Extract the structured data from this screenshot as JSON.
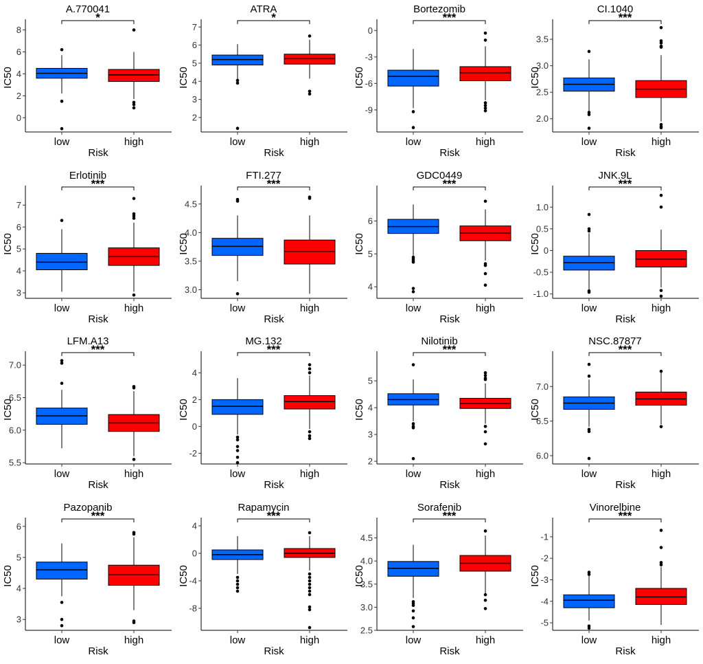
{
  "colors": {
    "low": "#0066FF",
    "high": "#FF0000"
  },
  "chart_data": [
    {
      "type": "box",
      "title": "A.770041",
      "xlabel": "Risk",
      "ylabel": "IC50",
      "categories": [
        "low",
        "high"
      ],
      "ylim": [
        -1.3,
        8.6
      ],
      "yticks": [
        0,
        2,
        4,
        6,
        8
      ],
      "yticklabels": [
        "0",
        "2",
        "4",
        "6",
        "8"
      ],
      "significance": "*",
      "series": [
        {
          "name": "low",
          "q1": 3.6,
          "median": 4.05,
          "q3": 4.5,
          "whisker_low": 2.2,
          "whisker_high": 5.7,
          "outliers": [
            6.2,
            1.5,
            -1.0
          ]
        },
        {
          "name": "high",
          "q1": 3.3,
          "median": 3.9,
          "q3": 4.4,
          "whisker_low": 1.7,
          "whisker_high": 6.0,
          "outliers": [
            8.0,
            1.4,
            1.2,
            0.9
          ]
        }
      ]
    },
    {
      "type": "box",
      "title": "ATRA",
      "xlabel": "Risk",
      "ylabel": "IC50",
      "categories": [
        "low",
        "high"
      ],
      "ylim": [
        1.2,
        7.2
      ],
      "yticks": [
        2,
        3,
        4,
        5,
        6,
        7
      ],
      "yticklabels": [
        "2",
        "3",
        "4",
        "5",
        "6",
        "7"
      ],
      "significance": "*",
      "series": [
        {
          "name": "low",
          "q1": 4.9,
          "median": 5.2,
          "q3": 5.45,
          "whisker_low": 4.1,
          "whisker_high": 6.05,
          "outliers": [
            4.05,
            3.9,
            1.4
          ]
        },
        {
          "name": "high",
          "q1": 4.95,
          "median": 5.25,
          "q3": 5.5,
          "whisker_low": 4.15,
          "whisker_high": 6.3,
          "outliers": [
            6.5,
            3.45,
            3.3
          ]
        }
      ]
    },
    {
      "type": "box",
      "title": "Bortezomib",
      "xlabel": "Risk",
      "ylabel": "IC50",
      "categories": [
        "low",
        "high"
      ],
      "ylim": [
        -11.5,
        0.8
      ],
      "yticks": [
        0,
        -3,
        -6,
        -9
      ],
      "yticklabels": [
        "0",
        "-3",
        "-6",
        "-9"
      ],
      "significance": "***",
      "series": [
        {
          "name": "low",
          "q1": -6.3,
          "median": -5.2,
          "q3": -4.5,
          "whisker_low": -8.8,
          "whisker_high": -2.1,
          "outliers": [
            -9.2,
            -11.0
          ]
        },
        {
          "name": "high",
          "q1": -5.7,
          "median": -4.8,
          "q3": -4.1,
          "whisker_low": -7.9,
          "whisker_high": -1.8,
          "outliers": [
            -0.3,
            -1.1,
            -8.2,
            -8.5,
            -8.8,
            -9.1
          ]
        }
      ]
    },
    {
      "type": "box",
      "title": "CI.1040",
      "xlabel": "Risk",
      "ylabel": "IC50",
      "categories": [
        "low",
        "high"
      ],
      "ylim": [
        1.75,
        3.8
      ],
      "yticks": [
        2.0,
        2.5,
        3.0,
        3.5
      ],
      "yticklabels": [
        "2.0",
        "2.5",
        "3.0",
        "3.5"
      ],
      "significance": "***",
      "series": [
        {
          "name": "low",
          "q1": 2.52,
          "median": 2.65,
          "q3": 2.77,
          "whisker_low": 2.15,
          "whisker_high": 3.12,
          "outliers": [
            3.27,
            2.12,
            2.08,
            1.82
          ]
        },
        {
          "name": "high",
          "q1": 2.4,
          "median": 2.56,
          "q3": 2.72,
          "whisker_low": 1.95,
          "whisker_high": 3.2,
          "outliers": [
            3.72,
            3.47,
            3.43,
            3.37,
            3.35,
            1.89,
            1.85,
            1.83
          ]
        }
      ]
    },
    {
      "type": "box",
      "title": "Erlotinib",
      "xlabel": "Risk",
      "ylabel": "IC50",
      "categories": [
        "low",
        "high"
      ],
      "ylim": [
        2.75,
        7.7
      ],
      "yticks": [
        3,
        4,
        5,
        6,
        7
      ],
      "yticklabels": [
        "3",
        "4",
        "5",
        "6",
        "7"
      ],
      "significance": "***",
      "series": [
        {
          "name": "low",
          "q1": 4.05,
          "median": 4.4,
          "q3": 4.8,
          "whisker_low": 3.05,
          "whisker_high": 5.9,
          "outliers": [
            6.3
          ]
        },
        {
          "name": "high",
          "q1": 4.25,
          "median": 4.65,
          "q3": 5.05,
          "whisker_low": 3.05,
          "whisker_high": 6.2,
          "outliers": [
            7.3,
            6.6,
            6.5,
            6.4,
            2.9
          ]
        }
      ]
    },
    {
      "type": "box",
      "title": "FTI.277",
      "xlabel": "Risk",
      "ylabel": "IC50",
      "categories": [
        "low",
        "high"
      ],
      "ylim": [
        2.85,
        4.75
      ],
      "yticks": [
        3.0,
        3.5,
        4.0,
        4.5
      ],
      "yticklabels": [
        "3.0",
        "3.5",
        "4.0",
        "4.5"
      ],
      "significance": "***",
      "series": [
        {
          "name": "low",
          "q1": 3.6,
          "median": 3.76,
          "q3": 3.9,
          "whisker_low": 3.15,
          "whisker_high": 4.3,
          "outliers": [
            4.58,
            4.55,
            2.93
          ]
        },
        {
          "name": "high",
          "q1": 3.45,
          "median": 3.67,
          "q3": 3.87,
          "whisker_low": 2.93,
          "whisker_high": 4.3,
          "outliers": [
            4.62,
            4.6
          ]
        }
      ]
    },
    {
      "type": "box",
      "title": "GDC0449",
      "xlabel": "Risk",
      "ylabel": "IC50",
      "categories": [
        "low",
        "high"
      ],
      "ylim": [
        3.65,
        6.95
      ],
      "yticks": [
        4,
        5,
        6
      ],
      "yticklabels": [
        "4",
        "5",
        "6"
      ],
      "significance": "***",
      "series": [
        {
          "name": "low",
          "q1": 5.62,
          "median": 5.83,
          "q3": 6.05,
          "whisker_low": 4.95,
          "whisker_high": 6.5,
          "outliers": [
            4.9,
            4.85,
            4.8,
            4.75,
            3.95,
            3.85
          ]
        },
        {
          "name": "high",
          "q1": 5.4,
          "median": 5.63,
          "q3": 5.85,
          "whisker_low": 4.8,
          "whisker_high": 6.35,
          "outliers": [
            6.6,
            4.7,
            4.65,
            4.4,
            4.05
          ]
        }
      ]
    },
    {
      "type": "box",
      "title": "JNK.9L",
      "xlabel": "Risk",
      "ylabel": "IC50",
      "categories": [
        "low",
        "high"
      ],
      "ylim": [
        -1.1,
        1.4
      ],
      "yticks": [
        1.0,
        0.5,
        0,
        -0.5,
        -1.0
      ],
      "yticklabels": [
        "1.0",
        "0.5",
        "0",
        "-0.5",
        "-1.0"
      ],
      "significance": "***",
      "series": [
        {
          "name": "low",
          "q1": -0.45,
          "median": -0.28,
          "q3": -0.13,
          "whisker_low": -0.9,
          "whisker_high": 0.4,
          "outliers": [
            0.83,
            0.5,
            0.45,
            -0.93,
            -0.96
          ]
        },
        {
          "name": "high",
          "q1": -0.38,
          "median": -0.2,
          "q3": 0.0,
          "whisker_low": -0.85,
          "whisker_high": 0.48,
          "outliers": [
            1.27,
            1.0,
            -0.92,
            -1.05
          ]
        }
      ]
    },
    {
      "type": "box",
      "title": "LFM.A13",
      "xlabel": "Risk",
      "ylabel": "IC50",
      "categories": [
        "low",
        "high"
      ],
      "ylim": [
        5.48,
        7.15
      ],
      "yticks": [
        5.5,
        6.0,
        6.5,
        7.0
      ],
      "yticklabels": [
        "5.5",
        "6.0",
        "6.5",
        "7.0"
      ],
      "significance": "***",
      "series": [
        {
          "name": "low",
          "q1": 6.09,
          "median": 6.22,
          "q3": 6.34,
          "whisker_low": 5.72,
          "whisker_high": 6.62,
          "outliers": [
            7.07,
            7.03,
            6.72
          ]
        },
        {
          "name": "high",
          "q1": 5.98,
          "median": 6.11,
          "q3": 6.24,
          "whisker_low": 5.6,
          "whisker_high": 6.6,
          "outliers": [
            6.67,
            6.65,
            5.55
          ]
        }
      ]
    },
    {
      "type": "box",
      "title": "MG.132",
      "xlabel": "Risk",
      "ylabel": "IC50",
      "categories": [
        "low",
        "high"
      ],
      "ylim": [
        -2.8,
        5.3
      ],
      "yticks": [
        4,
        2,
        0,
        -2
      ],
      "yticklabels": [
        "4",
        "2",
        "0",
        "-2"
      ],
      "significance": "***",
      "series": [
        {
          "name": "low",
          "q1": 0.9,
          "median": 1.5,
          "q3": 2.0,
          "whisker_low": -0.6,
          "whisker_high": 3.6,
          "outliers": [
            -0.8,
            -1.0,
            -1.5,
            -1.8,
            -2.3,
            -2.7
          ]
        },
        {
          "name": "high",
          "q1": 1.3,
          "median": 1.85,
          "q3": 2.3,
          "whisker_low": -0.2,
          "whisker_high": 3.8,
          "outliers": [
            4.6,
            4.3,
            4.0,
            -0.4,
            -0.7,
            -0.9
          ]
        }
      ]
    },
    {
      "type": "box",
      "title": "Nilotinib",
      "xlabel": "Risk",
      "ylabel": "IC50",
      "categories": [
        "low",
        "high"
      ],
      "ylim": [
        1.9,
        5.95
      ],
      "yticks": [
        2,
        3,
        4,
        5
      ],
      "yticklabels": [
        "2",
        "3",
        "4",
        "5"
      ],
      "significance": "***",
      "series": [
        {
          "name": "low",
          "q1": 4.1,
          "median": 4.3,
          "q3": 4.52,
          "whisker_low": 3.5,
          "whisker_high": 5.05,
          "outliers": [
            5.6,
            3.4,
            3.3,
            3.25,
            2.1
          ]
        },
        {
          "name": "high",
          "q1": 3.97,
          "median": 4.15,
          "q3": 4.35,
          "whisker_low": 3.4,
          "whisker_high": 4.9,
          "outliers": [
            5.3,
            5.2,
            5.1,
            5.05,
            3.3,
            3.1,
            2.65
          ]
        }
      ]
    },
    {
      "type": "box",
      "title": "NSC.87877",
      "xlabel": "Risk",
      "ylabel": "IC50",
      "categories": [
        "low",
        "high"
      ],
      "ylim": [
        5.88,
        7.45
      ],
      "yticks": [
        6.0,
        6.5,
        7.0
      ],
      "yticklabels": [
        "6.0",
        "6.5",
        "7.0"
      ],
      "significance": "***",
      "series": [
        {
          "name": "low",
          "q1": 6.67,
          "median": 6.76,
          "q3": 6.85,
          "whisker_low": 6.42,
          "whisker_high": 7.1,
          "outliers": [
            7.32,
            7.15,
            6.38,
            6.35,
            5.96
          ]
        },
        {
          "name": "high",
          "q1": 6.73,
          "median": 6.82,
          "q3": 6.92,
          "whisker_low": 6.45,
          "whisker_high": 7.2,
          "outliers": [
            7.22,
            6.42
          ]
        }
      ]
    },
    {
      "type": "box",
      "title": "Pazopanib",
      "xlabel": "Risk",
      "ylabel": "IC50",
      "categories": [
        "low",
        "high"
      ],
      "ylim": [
        2.65,
        6.15
      ],
      "yticks": [
        3,
        4,
        5,
        6
      ],
      "yticklabels": [
        "3",
        "4",
        "5",
        "6"
      ],
      "significance": "***",
      "series": [
        {
          "name": "low",
          "q1": 4.3,
          "median": 4.6,
          "q3": 4.85,
          "whisker_low": 3.75,
          "whisker_high": 5.45,
          "outliers": [
            3.55,
            3.0,
            2.8
          ]
        },
        {
          "name": "high",
          "q1": 4.1,
          "median": 4.45,
          "q3": 4.75,
          "whisker_low": 3.3,
          "whisker_high": 5.65,
          "outliers": [
            5.8,
            5.75,
            2.95,
            2.9
          ]
        }
      ]
    },
    {
      "type": "box",
      "title": "Rapamycin",
      "xlabel": "Risk",
      "ylabel": "IC50",
      "categories": [
        "low",
        "high"
      ],
      "ylim": [
        -11.2,
        4.6
      ],
      "yticks": [
        4,
        0,
        -4,
        -8
      ],
      "yticklabels": [
        "4",
        "0",
        "-4",
        "-8"
      ],
      "significance": "***",
      "series": [
        {
          "name": "low",
          "q1": -0.9,
          "median": -0.2,
          "q3": 0.5,
          "whisker_low": -3.0,
          "whisker_high": 2.5,
          "outliers": [
            -3.5,
            -4.0,
            -4.5,
            -5.0,
            -5.5
          ]
        },
        {
          "name": "high",
          "q1": -0.6,
          "median": 0.0,
          "q3": 0.7,
          "whisker_low": -2.5,
          "whisker_high": 2.5,
          "outliers": [
            3.0,
            -3.0,
            -3.5,
            -4.0,
            -4.5,
            -5.0,
            -5.5,
            -6.0,
            -7.8,
            -8.2,
            -10.8
          ]
        }
      ]
    },
    {
      "type": "box",
      "title": "Sorafenib",
      "xlabel": "Risk",
      "ylabel": "IC50",
      "categories": [
        "low",
        "high"
      ],
      "ylim": [
        2.5,
        4.85
      ],
      "yticks": [
        2.5,
        3.0,
        3.5,
        4.0,
        4.5
      ],
      "yticklabels": [
        "2.5",
        "3.0",
        "3.5",
        "4.0",
        "4.5"
      ],
      "significance": "***",
      "series": [
        {
          "name": "low",
          "q1": 3.67,
          "median": 3.84,
          "q3": 3.99,
          "whisker_low": 3.2,
          "whisker_high": 4.35,
          "outliers": [
            3.12,
            3.08,
            3.04,
            2.92,
            2.77,
            2.58
          ]
        },
        {
          "name": "high",
          "q1": 3.78,
          "median": 3.95,
          "q3": 4.12,
          "whisker_low": 3.3,
          "whisker_high": 4.55,
          "outliers": [
            4.65,
            3.27,
            3.15,
            2.97
          ]
        }
      ]
    },
    {
      "type": "box",
      "title": "Vinorelbine",
      "xlabel": "Risk",
      "ylabel": "IC50",
      "categories": [
        "low",
        "high"
      ],
      "ylim": [
        -5.35,
        -0.3
      ],
      "yticks": [
        -1,
        -2,
        -3,
        -4,
        -5
      ],
      "yticklabels": [
        "-1",
        "-2",
        "-3",
        "-4",
        "-5"
      ],
      "significance": "***",
      "series": [
        {
          "name": "low",
          "q1": -4.3,
          "median": -3.95,
          "q3": -3.7,
          "whisker_low": -4.9,
          "whisker_high": -2.8,
          "outliers": [
            -2.65,
            -2.75,
            -5.15,
            -5.25
          ]
        },
        {
          "name": "high",
          "q1": -4.15,
          "median": -3.8,
          "q3": -3.4,
          "whisker_low": -5.1,
          "whisker_high": -2.4,
          "outliers": [
            -0.7,
            -1.5,
            -2.2,
            -2.3
          ]
        }
      ]
    }
  ]
}
